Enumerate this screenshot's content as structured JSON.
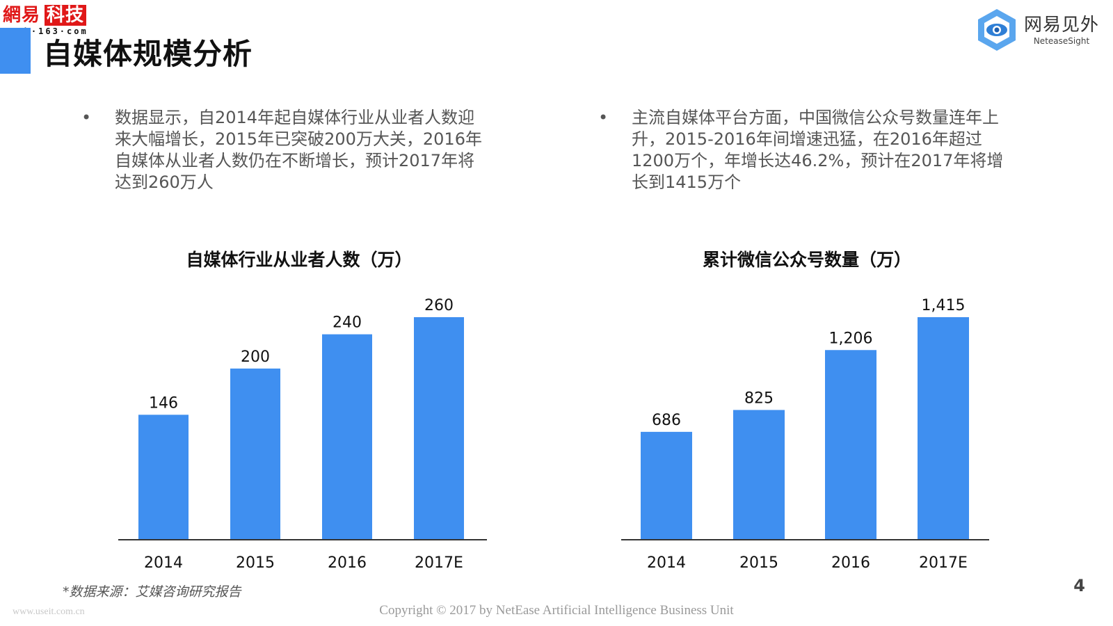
{
  "watermark": {
    "site_cn_part1": "網易",
    "site_cn_part2": "科技",
    "site_url": "tech·163·com",
    "bottom_left": "www.useit.com.cn"
  },
  "slide": {
    "title": "自媒体规模分析",
    "page_number": "4"
  },
  "brand": {
    "name_cn": "网易见外",
    "name_en": "NeteaseSight",
    "logo_icon": "eye-hexagon-icon"
  },
  "bullets": {
    "left": "数据显示，自2014年起自媒体行业从业者人数迎来大幅增长，2015年已突破200万大关，2016年自媒体从业者人数仍在不断增长，预计2017年将达到260万人",
    "right": "主流自媒体平台方面，中国微信公众号数量连年上升，2015-2016年间增速迅猛，在2016年超过1200万个，年增长达46.2%，预计在2017年将增长到1415万个",
    "marker": "•"
  },
  "chart_data": [
    {
      "type": "bar",
      "title": "自媒体行业从业者人数（万）",
      "categories": [
        "2014",
        "2015",
        "2016",
        "2017E"
      ],
      "values": [
        146,
        200,
        240,
        260
      ],
      "value_labels": [
        "146",
        "200",
        "240",
        "260"
      ],
      "ylim": [
        0,
        260
      ],
      "grid": false,
      "bar_color": "#3f8ff0"
    },
    {
      "type": "bar",
      "title": "累计微信公众号数量（万）",
      "categories": [
        "2014",
        "2015",
        "2016",
        "2017E"
      ],
      "values": [
        686,
        825,
        1206,
        1415
      ],
      "value_labels": [
        "686",
        "825",
        "1,206",
        "1,415"
      ],
      "ylim": [
        0,
        1415
      ],
      "grid": false,
      "bar_color": "#3f8ff0"
    }
  ],
  "footer": {
    "source": "*数据来源：艾媒咨询研究报告",
    "copyright": "Copyright © 2017 by NetEase Artificial Intelligence Business Unit"
  }
}
